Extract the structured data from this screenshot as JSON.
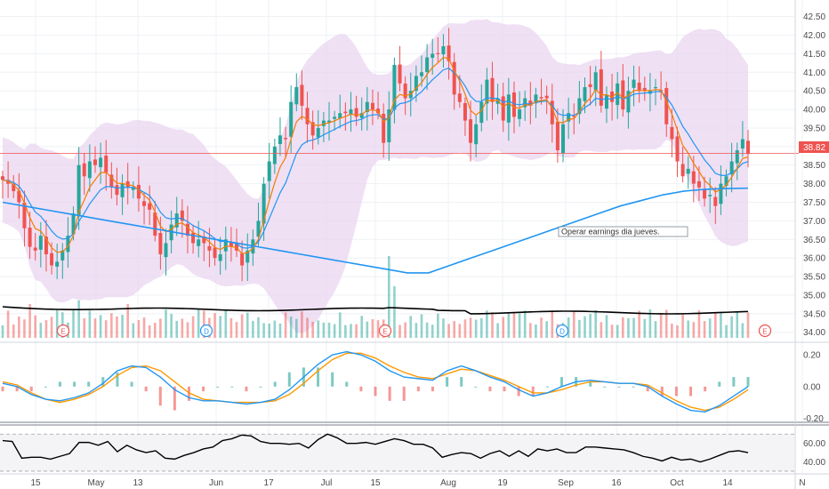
{
  "chart_data": {
    "type": "candlestick",
    "colors": {
      "up": "#26a69a",
      "down": "#ef5350",
      "ema_fast": "#f57c00",
      "ema_slow": "#2196f3",
      "sma_long": "#2196f3",
      "bollinger_fill": "#e9d5f0",
      "current_price_line": "#ef5350",
      "vol_ma": "#000000",
      "macd": "#2196f3",
      "signal": "#ff9800",
      "rsi": "#000000"
    },
    "price_axis": {
      "ylim": [
        33.85,
        42.85
      ],
      "ticks": [
        "34.00",
        "34.50",
        "35.00",
        "35.50",
        "36.00",
        "36.50",
        "37.00",
        "37.50",
        "38.00",
        "38.50",
        "39.00",
        "39.50",
        "40.00",
        "40.50",
        "41.00",
        "41.50",
        "42.00",
        "42.50"
      ]
    },
    "current_price_label": "38.82",
    "current_price": 38.82,
    "x_labels": [
      {
        "label": "15",
        "x": 40
      },
      {
        "label": "May",
        "x": 108
      },
      {
        "label": "13",
        "x": 155
      },
      {
        "label": "Jun",
        "x": 243
      },
      {
        "label": "17",
        "x": 302
      },
      {
        "label": "Jul",
        "x": 367
      },
      {
        "label": "15",
        "x": 422
      },
      {
        "label": "Aug",
        "x": 504
      },
      {
        "label": "19",
        "x": 565
      },
      {
        "label": "Sep",
        "x": 636
      },
      {
        "label": "16",
        "x": 693
      },
      {
        "label": "Oct",
        "x": 761
      },
      {
        "label": "14",
        "x": 818
      },
      {
        "label": "N",
        "x": 902
      }
    ],
    "event_markers": [
      {
        "label": "E",
        "x": 71
      },
      {
        "label": "D",
        "x": 232
      },
      {
        "label": "E",
        "x": 433
      },
      {
        "label": "D",
        "x": 632
      },
      {
        "label": "E",
        "x": 860
      }
    ],
    "annotation": "Operar earnings dia jueves.",
    "macd_axis": {
      "ylim": [
        -0.22,
        0.24
      ],
      "ticks": [
        "0.20",
        "0.00",
        "-0.20"
      ]
    },
    "rsi_axis": {
      "ylim": [
        28,
        76
      ],
      "ticks": [
        "60.00",
        "40.00"
      ]
    },
    "candles_close": [
      38.1,
      38.0,
      37.8,
      37.5,
      36.8,
      36.3,
      36.2,
      36.6,
      36.1,
      35.8,
      35.9,
      36.2,
      36.6,
      37.2,
      38.5,
      38.2,
      38.6,
      38.5,
      38.7,
      38.3,
      37.9,
      37.7,
      38.0,
      37.9,
      37.9,
      37.6,
      37.4,
      37.3,
      36.6,
      36.1,
      36.4,
      36.9,
      37.2,
      37.0,
      36.6,
      36.4,
      36.5,
      36.4,
      36.2,
      36.0,
      36.1,
      36.5,
      36.3,
      36.2,
      35.8,
      36.2,
      36.5,
      37.0,
      38.0,
      38.6,
      39.0,
      39.3,
      39.2,
      40.2,
      40.6,
      40.1,
      39.6,
      39.3,
      39.5,
      39.7,
      39.7,
      39.8,
      39.9,
      39.9,
      40.0,
      39.8,
      39.9,
      40.2,
      40.0,
      39.9,
      39.1,
      40.0,
      41.2,
      40.7,
      40.3,
      40.5,
      40.9,
      41.0,
      41.4,
      41.5,
      41.5,
      41.7,
      41.3,
      40.4,
      40.2,
      39.7,
      39.1,
      39.6,
      40.2,
      40.8,
      40.2,
      40.3,
      39.7,
      40.4,
      39.8,
      40.0,
      40.3,
      40.1,
      40.4,
      40.3,
      40.3,
      39.6,
      38.9,
      39.6,
      39.9,
      39.8,
      40.3,
      40.6,
      40.6,
      41.0,
      40.1,
      40.4,
      40.2,
      40.7,
      40.0,
      40.5,
      40.8,
      40.5,
      40.5,
      40.5,
      40.6,
      40.5,
      39.6,
      39.2,
      38.6,
      38.2,
      38.4,
      38.0,
      37.9,
      37.6,
      37.7,
      37.4,
      38.0,
      38.2,
      38.6,
      38.9,
      39.2,
      38.8
    ],
    "sma_long": [
      37.5,
      37.4,
      37.3,
      37.2,
      37.1,
      37.0,
      36.9,
      36.8,
      36.7,
      36.6,
      36.5,
      36.4,
      36.3,
      36.2,
      36.1,
      36.0,
      35.9,
      35.8,
      35.7,
      35.6,
      35.6,
      35.8,
      36.0,
      36.2,
      36.4,
      36.6,
      36.8,
      37.0,
      37.2,
      37.4,
      37.55,
      37.7,
      37.8,
      37.85,
      37.87,
      37.88
    ],
    "macd_line": [
      0.02,
      0.0,
      -0.05,
      -0.08,
      -0.09,
      -0.07,
      -0.04,
      0.02,
      0.1,
      0.13,
      0.12,
      0.06,
      -0.02,
      -0.07,
      -0.09,
      -0.09,
      -0.1,
      -0.11,
      -0.1,
      -0.08,
      -0.02,
      0.06,
      0.14,
      0.2,
      0.22,
      0.2,
      0.16,
      0.1,
      0.06,
      0.05,
      0.04,
      0.1,
      0.13,
      0.1,
      0.06,
      0.03,
      -0.02,
      -0.06,
      -0.04,
      0.0,
      0.03,
      0.04,
      0.03,
      0.02,
      0.02,
      0.0,
      -0.06,
      -0.11,
      -0.15,
      -0.16,
      -0.12,
      -0.06,
      0.0
    ],
    "signal_line": [
      0.03,
      0.01,
      -0.04,
      -0.08,
      -0.1,
      -0.08,
      -0.05,
      0.0,
      0.07,
      0.12,
      0.13,
      0.1,
      0.03,
      -0.04,
      -0.08,
      -0.09,
      -0.1,
      -0.1,
      -0.1,
      -0.09,
      -0.05,
      0.02,
      0.1,
      0.17,
      0.21,
      0.21,
      0.18,
      0.13,
      0.09,
      0.06,
      0.05,
      0.08,
      0.11,
      0.1,
      0.07,
      0.04,
      0.0,
      -0.04,
      -0.04,
      -0.02,
      0.01,
      0.03,
      0.03,
      0.02,
      0.02,
      0.01,
      -0.04,
      -0.09,
      -0.13,
      -0.15,
      -0.13,
      -0.08,
      -0.02
    ],
    "rsi_values": [
      63,
      62,
      44,
      45,
      45,
      43,
      46,
      49,
      61,
      61,
      58,
      62,
      51,
      58,
      53,
      50,
      52,
      44,
      43,
      47,
      50,
      54,
      56,
      63,
      65,
      69,
      68,
      62,
      60,
      60,
      59,
      60,
      55,
      64,
      70,
      66,
      60,
      60,
      61,
      59,
      62,
      65,
      63,
      59,
      59,
      55,
      45,
      48,
      50,
      49,
      44,
      49,
      52,
      46,
      52,
      46,
      54,
      52,
      54,
      50,
      50,
      56,
      56,
      55,
      54,
      53,
      50,
      46,
      44,
      41,
      45,
      42,
      43,
      40,
      43,
      47,
      51,
      52,
      50
    ]
  }
}
